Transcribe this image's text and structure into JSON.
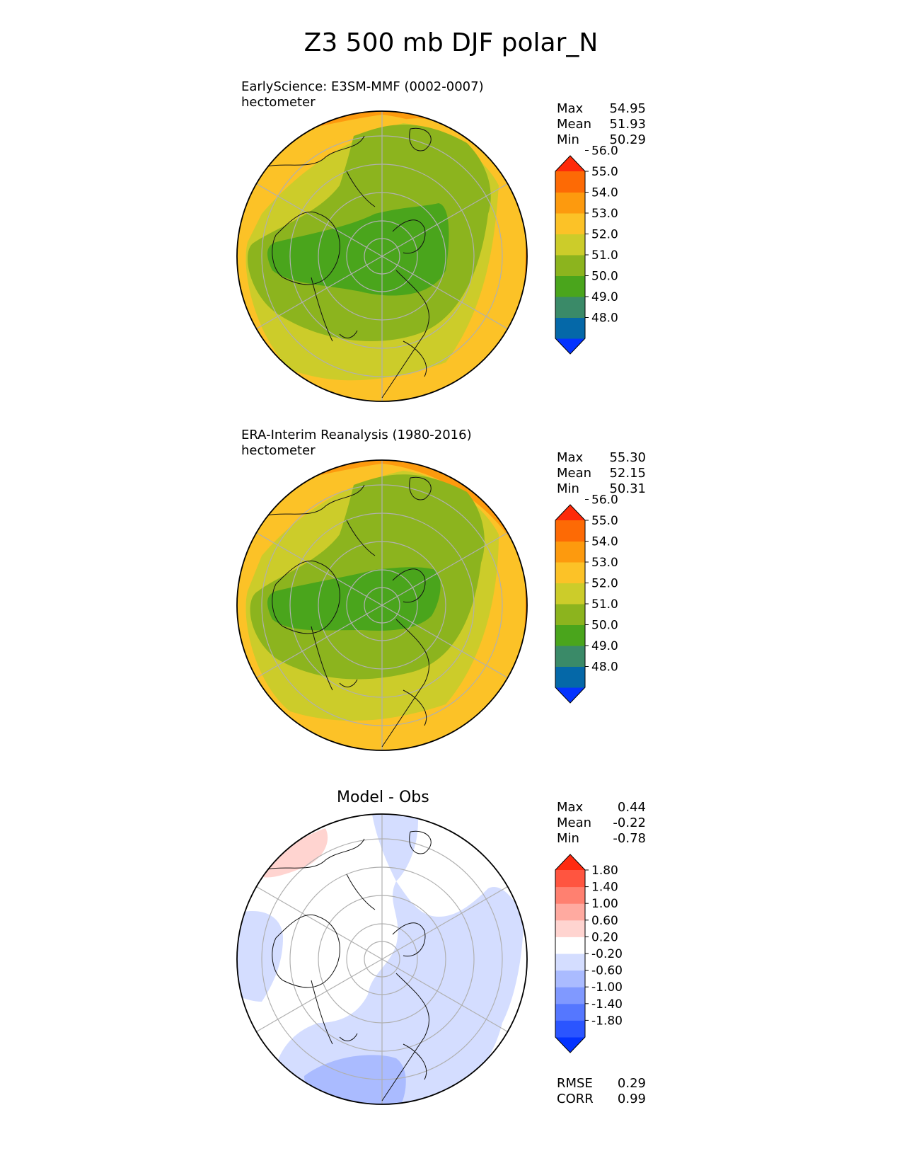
{
  "title": "Z3 500 mb DJF polar_N",
  "chart_data": [
    {
      "type": "heatmap",
      "projection": "north-polar-stereographic",
      "title": "EarlySciencе: E3SM-MMF (0002-0007)",
      "units": "hectometer",
      "stats": {
        "max": "54.95",
        "mean": "51.93",
        "min": "50.29"
      },
      "stat_labels": {
        "max": "Max",
        "mean": "Mean",
        "min": "Min"
      },
      "levels": [
        "48.0",
        "49.0",
        "50.0",
        "51.0",
        "52.0",
        "53.0",
        "54.0",
        "55.0",
        "56.0"
      ],
      "colors": [
        "#0433ff",
        "#0568a8",
        "#3a8a68",
        "#4aa51c",
        "#8cb41e",
        "#cccc2a",
        "#fcc227",
        "#fd9a0e",
        "#fd6a05",
        "#fe2a0a"
      ],
      "field": "geopotential_height_500mb",
      "range": [
        50.29,
        54.95
      ]
    },
    {
      "type": "heatmap",
      "projection": "north-polar-stereographic",
      "title": "ERA-Interim Reanalysis (1980-2016)",
      "units": "hectometer",
      "stats": {
        "max": "55.30",
        "mean": "52.15",
        "min": "50.31"
      },
      "stat_labels": {
        "max": "Max",
        "mean": "Mean",
        "min": "Min"
      },
      "levels": [
        "48.0",
        "49.0",
        "50.0",
        "51.0",
        "52.0",
        "53.0",
        "54.0",
        "55.0",
        "56.0"
      ],
      "colors": [
        "#0433ff",
        "#0568a8",
        "#3a8a68",
        "#4aa51c",
        "#8cb41e",
        "#cccc2a",
        "#fcc227",
        "#fd9a0e",
        "#fd6a05",
        "#fe2a0a"
      ],
      "field": "geopotential_height_500mb",
      "range": [
        50.31,
        55.3
      ]
    },
    {
      "type": "heatmap",
      "projection": "north-polar-stereographic",
      "title": "Model - Obs",
      "stats": {
        "max": "0.44",
        "mean": "-0.22",
        "min": "-0.78"
      },
      "stat_labels": {
        "max": "Max",
        "mean": "Mean",
        "min": "Min"
      },
      "levels": [
        "-1.80",
        "-1.40",
        "-1.00",
        "-0.60",
        "-0.20",
        "0.20",
        "0.60",
        "1.00",
        "1.40",
        "1.80"
      ],
      "colors": [
        "#0433ff",
        "#2b55ff",
        "#5577ff",
        "#8099ff",
        "#aabbff",
        "#d4ddff",
        "#ffffff",
        "#ffd4d0",
        "#ffaaa0",
        "#ff8070",
        "#ff5540",
        "#ff2a10"
      ],
      "metrics": {
        "rmse": "0.29",
        "corr": "0.99"
      },
      "metric_labels": {
        "rmse": "RMSE",
        "corr": "CORR"
      },
      "field": "difference",
      "range": [
        -0.78,
        0.44
      ]
    }
  ]
}
